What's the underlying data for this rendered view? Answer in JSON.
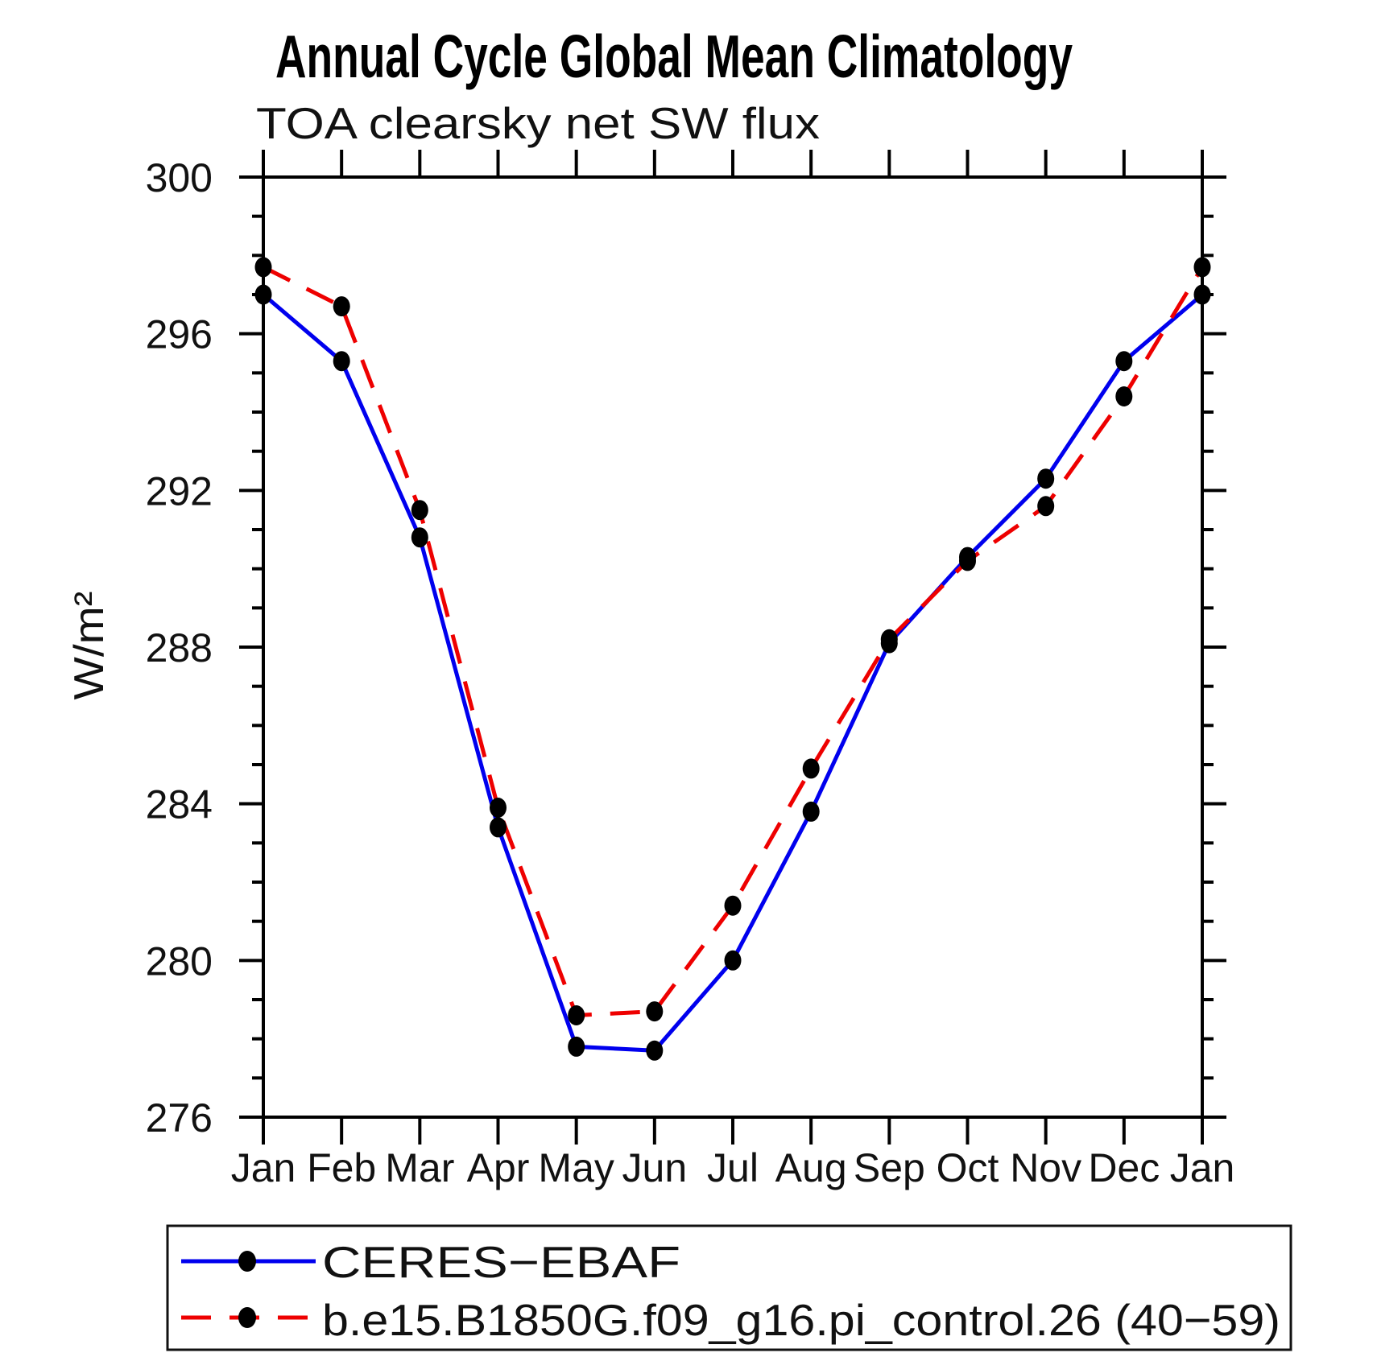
{
  "title": "Annual Cycle Global Mean Climatology",
  "subtitle": "TOA clearsky net SW flux",
  "colors": {
    "background": "#ffffff",
    "axis": "#000000",
    "text": "#111111",
    "ceres_line": "#0000ee",
    "model_line": "#ee0000",
    "marker": "#000000"
  },
  "chart_data": {
    "type": "line",
    "title": "Annual Cycle Global Mean Climatology",
    "subtitle": "TOA clearsky net SW flux",
    "xlabel": "",
    "ylabel": "W/m²",
    "ylim": [
      276,
      300
    ],
    "yticks_major": [
      276,
      280,
      284,
      288,
      292,
      296,
      300
    ],
    "ytick_labels": [
      "276",
      "280",
      "284",
      "288",
      "292",
      "296",
      "300"
    ],
    "ytick_minor_step": 1,
    "grid": false,
    "legend_position": "bottom-box",
    "categories": [
      "Jan",
      "Feb",
      "Mar",
      "Apr",
      "May",
      "Jun",
      "Jul",
      "Aug",
      "Sep",
      "Oct",
      "Nov",
      "Dec",
      "Jan"
    ],
    "series": [
      {
        "name": "CERES−EBAF",
        "color": "#0000ee",
        "line_style": "solid",
        "marker": "black-dot",
        "values": [
          297.0,
          295.3,
          290.8,
          283.4,
          277.8,
          277.7,
          280.0,
          283.8,
          288.1,
          290.3,
          292.3,
          295.3,
          297.0
        ]
      },
      {
        "name": "b.e15.B1850G.f09_g16.pi_control.26 (40−59)",
        "color": "#ee0000",
        "line_style": "dashed",
        "marker": "black-dot",
        "values": [
          297.7,
          296.7,
          291.5,
          283.9,
          278.6,
          278.7,
          281.4,
          284.9,
          288.2,
          290.2,
          291.6,
          294.4,
          297.7
        ]
      }
    ]
  }
}
